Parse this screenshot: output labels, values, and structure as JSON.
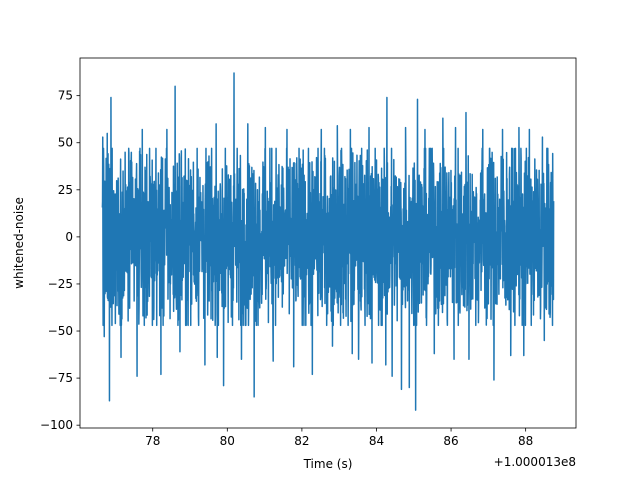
{
  "chart_data": {
    "type": "line",
    "title": "",
    "xlabel": "Time (s)",
    "ylabel": "whitened-noise",
    "offset_label": "+1.000013e8",
    "xlim": [
      76.05,
      89.35
    ],
    "ylim": [
      -101.5,
      95.0
    ],
    "x_ticks": [
      78,
      80,
      82,
      84,
      86,
      88
    ],
    "y_ticks": [
      -100,
      -75,
      -50,
      -25,
      0,
      25,
      50,
      75
    ],
    "grid": false,
    "legend": "none",
    "line_color": "#1f77b4",
    "series": [
      {
        "x_start": 76.65,
        "x_end": 88.75,
        "typical_min": -47,
        "typical_max": 47,
        "peaks": [
          {
            "x": 76.66,
            "y": 53
          },
          {
            "x": 76.7,
            "y": -53
          },
          {
            "x": 76.78,
            "y": 55
          },
          {
            "x": 76.84,
            "y": -87
          },
          {
            "x": 76.88,
            "y": 74
          },
          {
            "x": 77.15,
            "y": 55
          },
          {
            "x": 77.15,
            "y": -64
          },
          {
            "x": 77.58,
            "y": -74
          },
          {
            "x": 77.72,
            "y": 57
          },
          {
            "x": 78.22,
            "y": -73
          },
          {
            "x": 78.38,
            "y": 57
          },
          {
            "x": 78.6,
            "y": 80
          },
          {
            "x": 78.73,
            "y": -61
          },
          {
            "x": 79.4,
            "y": -68
          },
          {
            "x": 79.7,
            "y": 60
          },
          {
            "x": 79.73,
            "y": -64
          },
          {
            "x": 79.9,
            "y": -79
          },
          {
            "x": 80.18,
            "y": 87
          },
          {
            "x": 80.38,
            "y": -65
          },
          {
            "x": 80.55,
            "y": 60
          },
          {
            "x": 80.72,
            "y": -85
          },
          {
            "x": 81.02,
            "y": 58
          },
          {
            "x": 81.23,
            "y": -66
          },
          {
            "x": 81.6,
            "y": 57
          },
          {
            "x": 81.78,
            "y": -69
          },
          {
            "x": 82.28,
            "y": -73
          },
          {
            "x": 82.52,
            "y": 57
          },
          {
            "x": 82.82,
            "y": -58
          },
          {
            "x": 82.95,
            "y": 59
          },
          {
            "x": 83.3,
            "y": 57
          },
          {
            "x": 83.35,
            "y": -62
          },
          {
            "x": 83.52,
            "y": -65
          },
          {
            "x": 83.8,
            "y": 58
          },
          {
            "x": 83.88,
            "y": -67
          },
          {
            "x": 84.25,
            "y": -68
          },
          {
            "x": 84.28,
            "y": 74
          },
          {
            "x": 84.42,
            "y": -74
          },
          {
            "x": 84.67,
            "y": -81
          },
          {
            "x": 84.78,
            "y": 58
          },
          {
            "x": 84.88,
            "y": -80
          },
          {
            "x": 85.05,
            "y": -92
          },
          {
            "x": 85.1,
            "y": 73
          },
          {
            "x": 85.3,
            "y": 57
          },
          {
            "x": 85.55,
            "y": -62
          },
          {
            "x": 85.78,
            "y": 63
          },
          {
            "x": 86.08,
            "y": -65
          },
          {
            "x": 86.12,
            "y": 58
          },
          {
            "x": 86.4,
            "y": 66
          },
          {
            "x": 86.48,
            "y": -65
          },
          {
            "x": 86.85,
            "y": 57
          },
          {
            "x": 87.15,
            "y": -76
          },
          {
            "x": 87.38,
            "y": 57
          },
          {
            "x": 87.6,
            "y": -63
          },
          {
            "x": 87.82,
            "y": 58
          },
          {
            "x": 87.95,
            "y": -63
          },
          {
            "x": 88.1,
            "y": 57
          },
          {
            "x": 88.45,
            "y": 53
          },
          {
            "x": 88.5,
            "y": -55
          },
          {
            "x": 88.72,
            "y": 48
          },
          {
            "x": 88.72,
            "y": -47
          }
        ]
      }
    ]
  }
}
